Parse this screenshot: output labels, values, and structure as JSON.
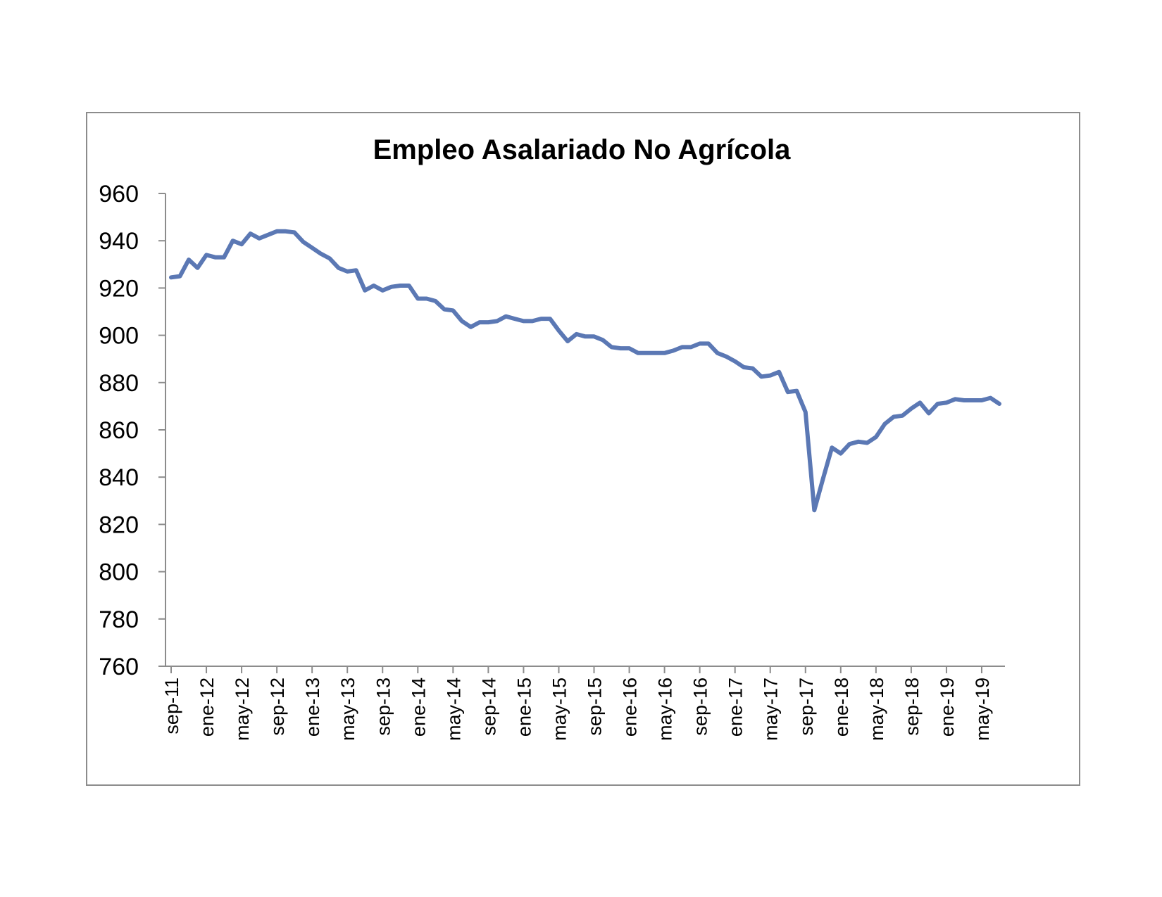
{
  "chart_data": {
    "type": "line",
    "title": "Empleo Asalariado No Agrícola",
    "xlabel": "",
    "ylabel": "",
    "ylim": [
      760,
      960
    ],
    "yticks": [
      760,
      780,
      800,
      820,
      840,
      860,
      880,
      900,
      920,
      940,
      960
    ],
    "xtick_labels": [
      "sep-11",
      "ene-12",
      "may-12",
      "sep-12",
      "ene-13",
      "may-13",
      "sep-13",
      "ene-14",
      "may-14",
      "sep-14",
      "ene-15",
      "may-15",
      "sep-15",
      "ene-16",
      "may-16",
      "sep-16",
      "ene-17",
      "may-17",
      "sep-17",
      "ene-18",
      "may-18",
      "sep-18",
      "ene-19",
      "may-19"
    ],
    "x_start": "sep-11",
    "x_end": "ago-19",
    "grid": false,
    "legend": "none",
    "line_color": "#5b78b4",
    "series": [
      {
        "values": [
          924.5,
          925,
          932,
          928.5,
          934,
          933,
          933,
          940,
          938.5,
          943,
          941,
          942.5,
          944,
          944,
          943.5,
          939.5,
          937,
          934.5,
          932.5,
          928.5,
          927,
          927.5,
          919,
          921,
          919,
          920.5,
          921,
          921,
          915.5,
          915.5,
          914.5,
          911,
          910.5,
          906,
          903.5,
          905.5,
          905.5,
          906,
          908,
          907,
          906,
          906,
          907,
          907,
          902,
          897.5,
          900.5,
          899.5,
          899.5,
          898,
          895,
          894.5,
          894.5,
          892.5,
          892.5,
          892.5,
          892.5,
          893.5,
          895,
          895,
          896.5,
          896.5,
          892.5,
          891,
          889,
          886.5,
          886,
          882.5,
          883,
          884.5,
          876,
          876.5,
          867.5,
          826,
          839.5,
          852.5,
          850,
          854,
          855,
          854.5,
          857,
          862.5,
          865.5,
          866,
          869,
          871.5,
          867,
          871,
          871.5,
          873,
          872.5,
          872.5,
          872.5,
          873.5,
          871
        ]
      }
    ]
  }
}
